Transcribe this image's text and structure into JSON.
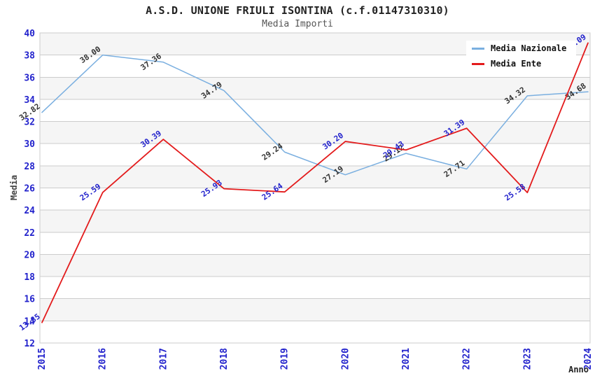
{
  "header": {
    "title": "A.S.D. UNIONE FRIULI ISONTINA (c.f.01147310310)",
    "subtitle": "Media Importi"
  },
  "chart_data": {
    "type": "line",
    "categories": [
      "2015",
      "2016",
      "2017",
      "2018",
      "2019",
      "2020",
      "2021",
      "2022",
      "2023",
      "2024"
    ],
    "series": [
      {
        "name": "Media Nazionale",
        "color": "#7aafe0",
        "label_color": "#333333",
        "values": [
          32.82,
          38.0,
          37.36,
          34.79,
          29.24,
          27.19,
          29.12,
          27.71,
          34.32,
          34.68
        ]
      },
      {
        "name": "Media Ente",
        "color": "#e31b1c",
        "label_color": "#2222cc",
        "values": [
          13.85,
          25.59,
          30.39,
          25.93,
          25.64,
          30.2,
          29.43,
          31.39,
          25.58,
          39.09
        ]
      }
    ],
    "xlabel": "Anno",
    "ylabel": "Media",
    "ylim": [
      12,
      40
    ],
    "ytick_step": 2,
    "yticks": [
      12,
      14,
      16,
      18,
      20,
      22,
      24,
      26,
      28,
      30,
      32,
      34,
      36,
      38,
      40
    ],
    "grid": true,
    "legend_position": "top-right",
    "colors": {
      "tick_label": "#2222cc",
      "grid_line": "#cccccc",
      "band": "#f5f5f5",
      "plot_border": "#cccccc",
      "axis_title": "#444444",
      "xlabel_color": "#222222"
    }
  }
}
